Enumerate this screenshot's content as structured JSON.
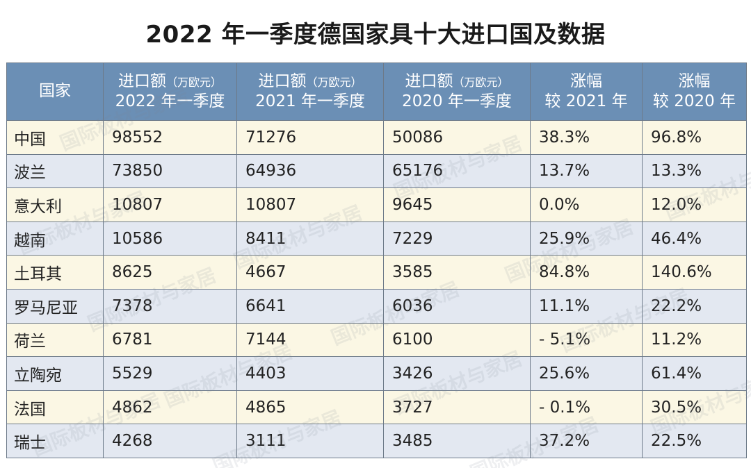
{
  "title": "2022 年一季度德国家具十大进口国及数据",
  "watermark": "国际板材与家居",
  "table": {
    "headers": [
      {
        "line1": "国家",
        "unit": "",
        "line2": ""
      },
      {
        "line1": "进口额",
        "unit": "（万欧元）",
        "line2": "2022 年一季度"
      },
      {
        "line1": "进口额",
        "unit": "（万欧元）",
        "line2": "2021 年一季度"
      },
      {
        "line1": "进口额",
        "unit": "（万欧元）",
        "line2": "2020 年一季度"
      },
      {
        "line1": "涨幅",
        "unit": "",
        "line2": "较 2021 年"
      },
      {
        "line1": "涨幅",
        "unit": "",
        "line2": "较 2020 年"
      }
    ],
    "rows": [
      [
        "中国",
        "98552",
        "71276",
        "50086",
        "38.3%",
        "96.8%"
      ],
      [
        "波兰",
        "73850",
        "64936",
        "65176",
        "13.7%",
        "13.3%"
      ],
      [
        "意大利",
        "10807",
        "10807",
        "9645",
        "0.0%",
        "12.0%"
      ],
      [
        "越南",
        "10586",
        "8411",
        "7229",
        "25.9%",
        "46.4%"
      ],
      [
        "土耳其",
        "8625",
        "4667",
        "3585",
        "84.8%",
        "140.6%"
      ],
      [
        "罗马尼亚",
        "7378",
        "6641",
        "6036",
        "11.1%",
        "22.2%"
      ],
      [
        "荷兰",
        "6781",
        "7144",
        "6100",
        " - 5.1%",
        "11.2%"
      ],
      [
        "立陶宛",
        "5529",
        "4403",
        "3426",
        "25.6%",
        "61.4%"
      ],
      [
        "法国",
        "4862",
        "4865",
        "3727",
        " - 0.1%",
        "30.5%"
      ],
      [
        "瑞士",
        "4268",
        "3111",
        "3485",
        "37.2%",
        "22.5%"
      ]
    ]
  },
  "colors": {
    "header_bg": "#6b8fb5",
    "row_even": "#fbf7e4",
    "row_odd": "#e3e8f1",
    "border": "#6d7a89"
  }
}
